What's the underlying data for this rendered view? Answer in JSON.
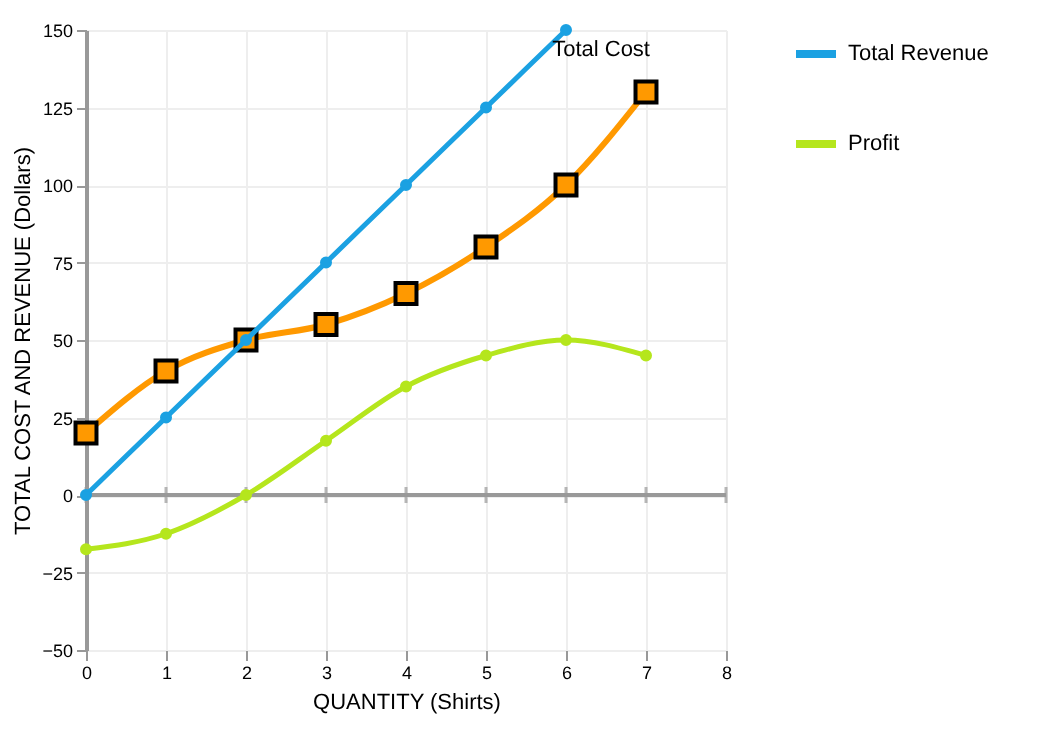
{
  "chart_data": {
    "type": "line",
    "xlabel": "QUANTITY (Shirts)",
    "ylabel": "TOTAL COST AND REVENUE (Dollars)",
    "x": [
      0,
      1,
      2,
      3,
      4,
      5,
      6,
      7
    ],
    "series": [
      {
        "color": "#ff9900",
        "marker": "square",
        "values": [
          20,
          40,
          50,
          55,
          65,
          80,
          100,
          130
        ]
      },
      {
        "name": "Total Revenue",
        "color": "#1ba1e2",
        "marker": "circle",
        "x": [
          0,
          1,
          2,
          3,
          4,
          5,
          6
        ],
        "values": [
          0,
          25,
          50,
          75,
          100,
          125,
          150
        ]
      },
      {
        "name": "Profit",
        "color": "#b5e61d",
        "marker": "circle",
        "values": [
          -17.5,
          -12.5,
          0,
          17.5,
          35,
          45,
          50,
          45
        ]
      }
    ],
    "annotations": [
      {
        "text": "Total Cost",
        "x": 7,
        "y": 130
      }
    ],
    "ref_lines": [
      {
        "axis": "y",
        "value": 0,
        "color": "#999999"
      }
    ],
    "xlim": [
      0,
      8
    ],
    "xticks": [
      0,
      1,
      2,
      3,
      4,
      5,
      6,
      7,
      8
    ],
    "ylim": [
      -50,
      150
    ],
    "yticks": [
      -50,
      -25,
      0,
      25,
      50,
      75,
      100,
      125,
      150
    ],
    "grid": true,
    "legend": "right",
    "line_style": "solid"
  }
}
